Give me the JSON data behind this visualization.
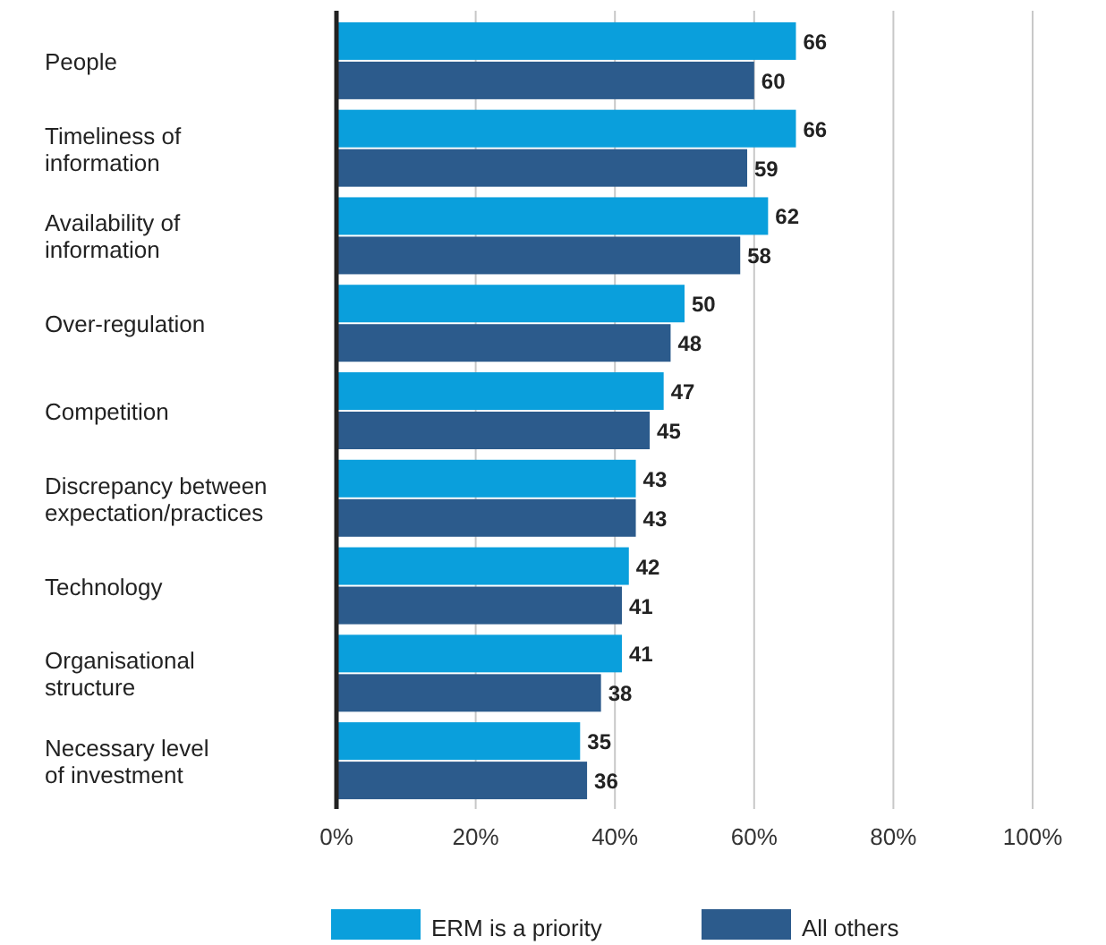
{
  "chart_data": {
    "type": "bar",
    "orientation": "horizontal",
    "categories": [
      "People",
      "Timeliness of\ninformation",
      "Availability of\ninformation",
      "Over-regulation",
      "Competition",
      "Discrepancy between\nexpectation/practices",
      "Technology",
      "Organisational\nstructure",
      "Necessary level\nof investment"
    ],
    "series": [
      {
        "name": "ERM is a priority",
        "color": "#0a9fdc",
        "values": [
          66,
          66,
          62,
          50,
          47,
          43,
          42,
          41,
          35
        ]
      },
      {
        "name": "All others",
        "color": "#2c5b8c",
        "values": [
          60,
          59,
          58,
          48,
          45,
          43,
          41,
          38,
          36
        ]
      }
    ],
    "xlim": [
      0,
      100
    ],
    "xticks": [
      {
        "value": 0,
        "label": "0%"
      },
      {
        "value": 20,
        "label": "20%"
      },
      {
        "value": 40,
        "label": "40%"
      },
      {
        "value": 60,
        "label": "60%"
      },
      {
        "value": 80,
        "label": "80%"
      },
      {
        "value": 100,
        "label": "100%"
      }
    ],
    "grid": "x",
    "data_labels": true,
    "legend": "bottom"
  }
}
